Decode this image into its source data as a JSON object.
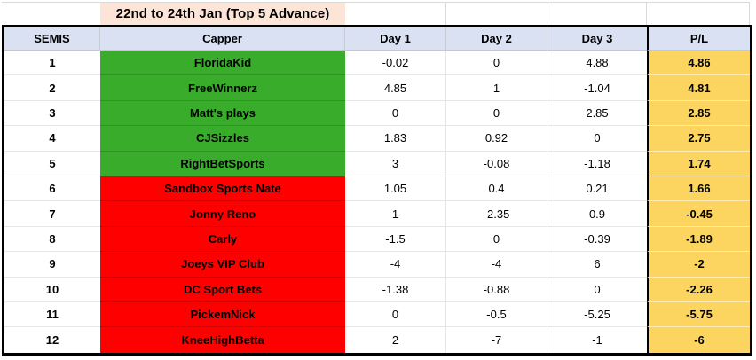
{
  "title": "22nd to 24th Jan (Top 5 Advance)",
  "columns": [
    "SEMIS",
    "Capper",
    "Day 1",
    "Day 2",
    "Day 3",
    "P/L"
  ],
  "rows": [
    {
      "rank": "1",
      "capper": "FloridaKid",
      "status": "advance",
      "day1": "-0.02",
      "day2": "0",
      "day3": "4.88",
      "pl": "4.86"
    },
    {
      "rank": "2",
      "capper": "FreeWinnerz",
      "status": "advance",
      "day1": "4.85",
      "day2": "1",
      "day3": "-1.04",
      "pl": "4.81"
    },
    {
      "rank": "3",
      "capper": "Matt's plays",
      "status": "advance",
      "day1": "0",
      "day2": "0",
      "day3": "2.85",
      "pl": "2.85"
    },
    {
      "rank": "4",
      "capper": "CJSizzles",
      "status": "advance",
      "day1": "1.83",
      "day2": "0.92",
      "day3": "0",
      "pl": "2.75"
    },
    {
      "rank": "5",
      "capper": "RightBetSports",
      "status": "advance",
      "day1": "3",
      "day2": "-0.08",
      "day3": "-1.18",
      "pl": "1.74"
    },
    {
      "rank": "6",
      "capper": "Sandbox Sports Nate",
      "status": "eliminated",
      "day1": "1.05",
      "day2": "0.4",
      "day3": "0.21",
      "pl": "1.66"
    },
    {
      "rank": "7",
      "capper": "Jonny Reno",
      "status": "eliminated",
      "day1": "1",
      "day2": "-2.35",
      "day3": "0.9",
      "pl": "-0.45"
    },
    {
      "rank": "8",
      "capper": "Carly",
      "status": "eliminated",
      "day1": "-1.5",
      "day2": "0",
      "day3": "-0.39",
      "pl": "-1.89"
    },
    {
      "rank": "9",
      "capper": "Joeys VIP Club",
      "status": "eliminated",
      "day1": "-4",
      "day2": "-4",
      "day3": "6",
      "pl": "-2"
    },
    {
      "rank": "10",
      "capper": "DC Sport Bets",
      "status": "eliminated",
      "day1": "-1.38",
      "day2": "-0.88",
      "day3": "0",
      "pl": "-2.26"
    },
    {
      "rank": "11",
      "capper": "PickemNick",
      "status": "eliminated",
      "day1": "0",
      "day2": "-0.5",
      "day3": "-5.25",
      "pl": "-5.75"
    },
    {
      "rank": "12",
      "capper": "KneeHighBetta",
      "status": "eliminated",
      "day1": "2",
      "day2": "-7",
      "day3": "-1",
      "pl": "-6"
    }
  ],
  "colors": {
    "advance_green": "#39AC2B",
    "eliminated_red": "#FE0000",
    "pl_gold": "#FBD560",
    "header_blue": "#D9E1F2",
    "title_peach": "#FCE4D6"
  }
}
